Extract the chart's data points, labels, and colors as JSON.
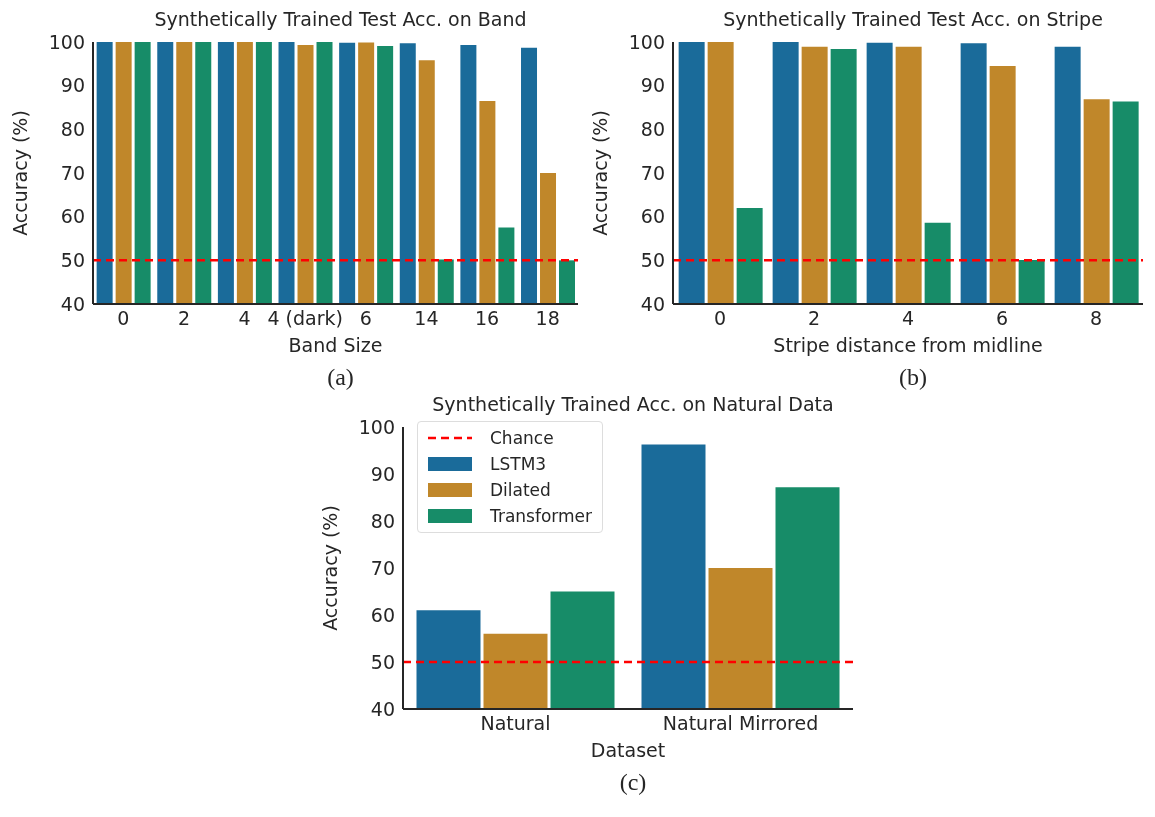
{
  "chart_data": [
    {
      "type": "bar",
      "title": "Synthetically Trained Test Acc. on Band",
      "xlabel": "Band Size",
      "ylabel": "Accuracy (%)",
      "categories": [
        "0",
        "2",
        "4",
        "4 (dark)",
        "6",
        "14",
        "16",
        "18"
      ],
      "series": [
        {
          "color": "#1a6b9a",
          "values": [
            100,
            100,
            100,
            100,
            99.8,
            99.7,
            99.3,
            98.7
          ]
        },
        {
          "color": "#c0872a",
          "values": [
            100,
            100,
            100,
            99.3,
            99.9,
            95.8,
            86.5,
            70
          ]
        },
        {
          "color": "#178c68",
          "values": [
            100,
            100,
            100,
            100,
            99.1,
            50.2,
            57.5,
            50
          ]
        }
      ],
      "ylim": [
        40,
        100
      ],
      "yticks": [
        40,
        50,
        60,
        70,
        80,
        90,
        100
      ],
      "ref_lines": [
        {
          "axis": "y",
          "value": 50,
          "color": "#ff0000",
          "line_style": "dashed"
        }
      ],
      "annotations": [
        "(a)"
      ]
    },
    {
      "type": "bar",
      "title": "Synthetically Trained Test Acc. on Stripe",
      "xlabel": "Stripe distance from midline",
      "ylabel": "Accuracy (%)",
      "categories": [
        "0",
        "2",
        "4",
        "6",
        "8"
      ],
      "series": [
        {
          "color": "#1a6b9a",
          "values": [
            100,
            100,
            99.8,
            99.7,
            98.9
          ]
        },
        {
          "color": "#c0872a",
          "values": [
            100,
            98.9,
            98.9,
            94.5,
            86.9
          ]
        },
        {
          "color": "#178c68",
          "values": [
            62,
            98.4,
            58.6,
            50.1,
            86.4
          ]
        }
      ],
      "ylim": [
        40,
        100
      ],
      "yticks": [
        40,
        50,
        60,
        70,
        80,
        90,
        100
      ],
      "ref_lines": [
        {
          "axis": "y",
          "value": 50,
          "color": "#ff0000",
          "line_style": "dashed"
        }
      ],
      "annotations": [
        "(b)"
      ]
    },
    {
      "type": "bar",
      "title": "Synthetically Trained Acc. on Natural Data",
      "xlabel": "Dataset",
      "ylabel": "Accuracy (%)",
      "categories": [
        "Natural",
        "Natural Mirrored"
      ],
      "series": [
        {
          "name": "LSTM3",
          "color": "#1a6b9a",
          "values": [
            61,
            96.3
          ]
        },
        {
          "name": "Dilated",
          "color": "#c0872a",
          "values": [
            56,
            70
          ]
        },
        {
          "name": "Transformer",
          "color": "#178c68",
          "values": [
            65,
            87.2
          ]
        }
      ],
      "ylim": [
        40,
        100
      ],
      "yticks": [
        40,
        50,
        60,
        70,
        80,
        90,
        100
      ],
      "ref_lines": [
        {
          "axis": "y",
          "value": 50,
          "label": "Chance",
          "color": "#ff0000",
          "line_style": "dashed"
        }
      ],
      "legend": "top left",
      "annotations": [
        "(c)"
      ]
    }
  ]
}
